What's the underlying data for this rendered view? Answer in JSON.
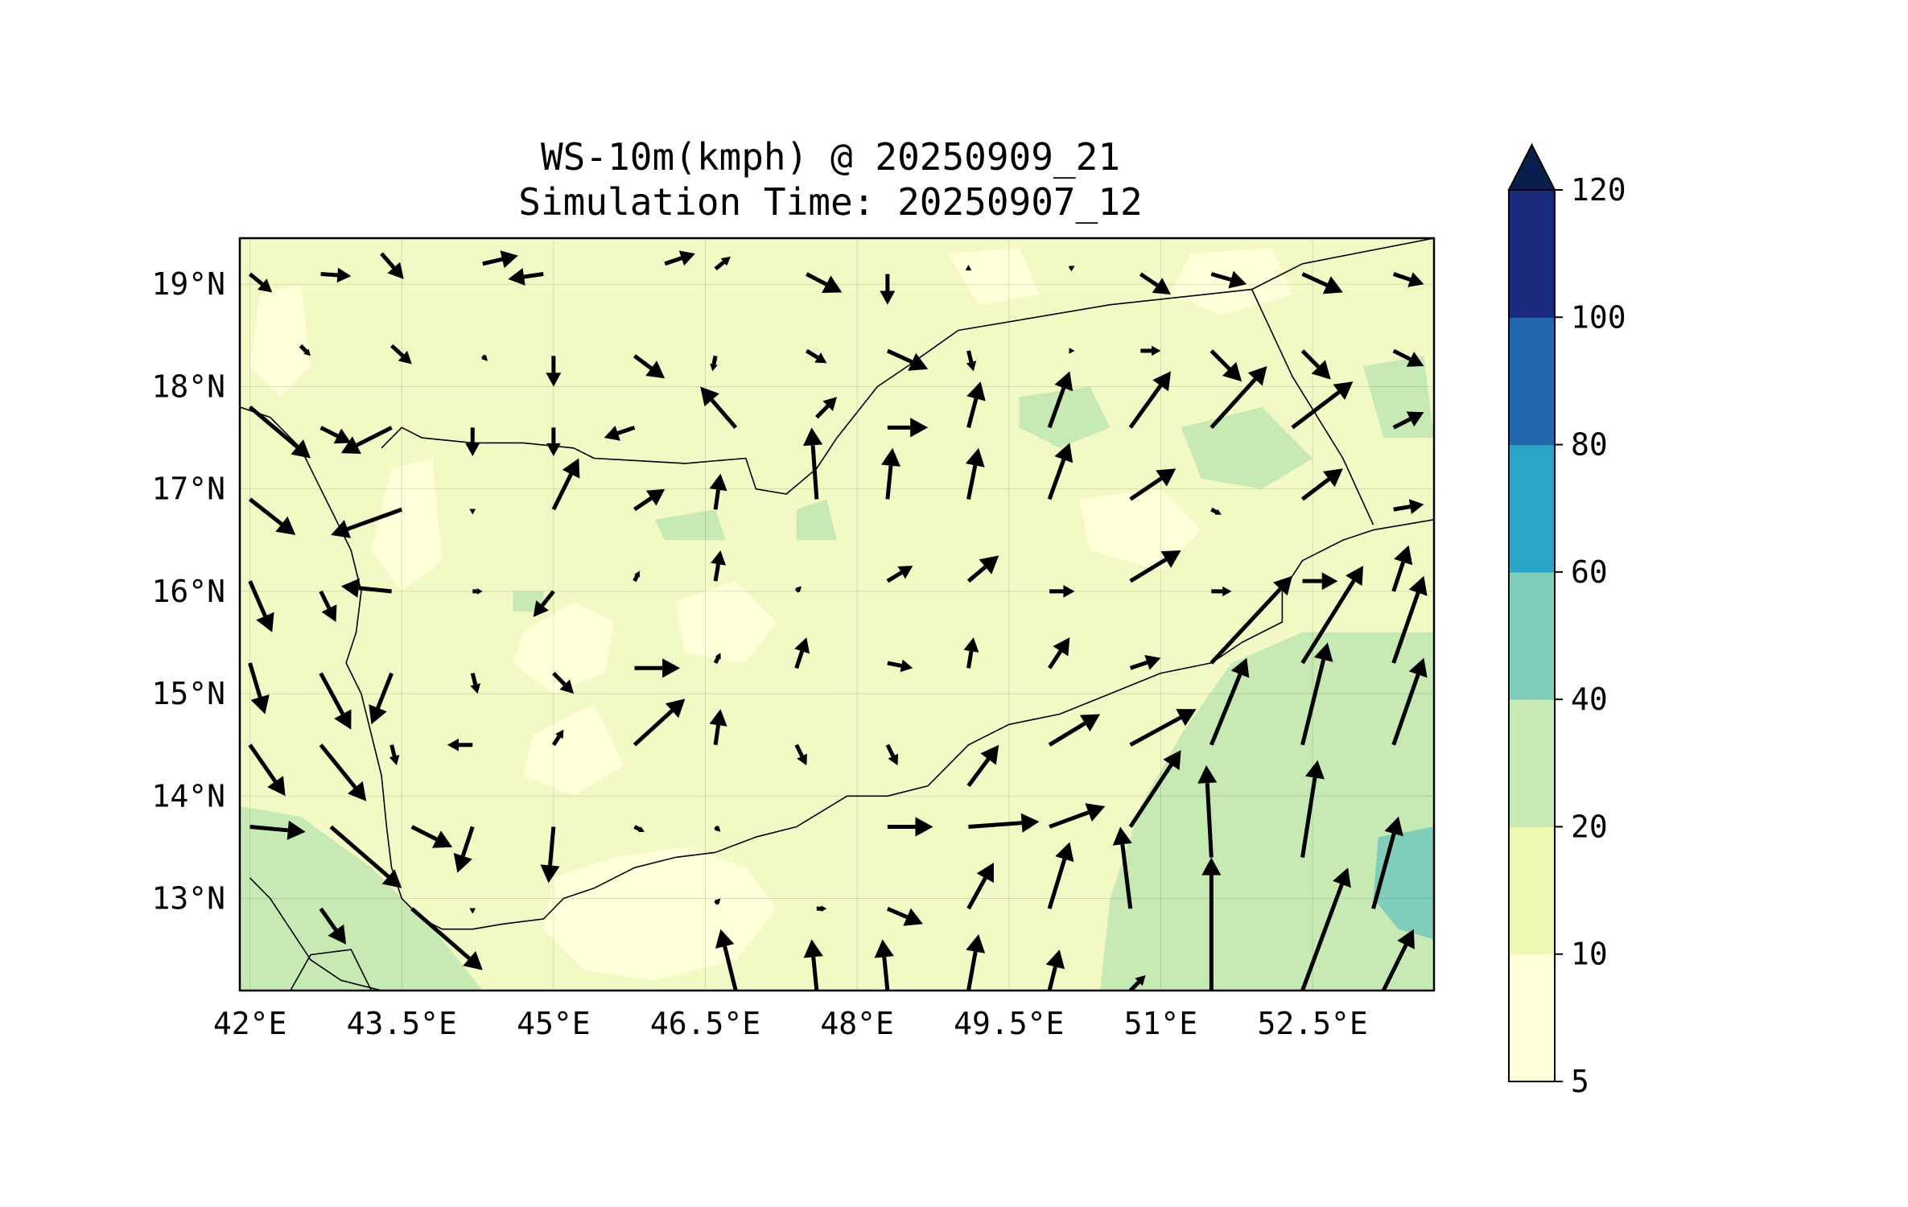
{
  "title_line1": "WS-10m(kmph) @ 20250909_21",
  "title_line2": "Simulation Time: 20250907_12",
  "lon_ticks": [
    {
      "lon": 42.0,
      "label": "42°E"
    },
    {
      "lon": 43.5,
      "label": "43.5°E"
    },
    {
      "lon": 45.0,
      "label": "45°E"
    },
    {
      "lon": 46.5,
      "label": "46.5°E"
    },
    {
      "lon": 48.0,
      "label": "48°E"
    },
    {
      "lon": 49.5,
      "label": "49.5°E"
    },
    {
      "lon": 51.0,
      "label": "51°E"
    },
    {
      "lon": 52.5,
      "label": "52.5°E"
    }
  ],
  "lat_ticks": [
    {
      "lat": 19,
      "label": "19°N"
    },
    {
      "lat": 18,
      "label": "18°N"
    },
    {
      "lat": 17,
      "label": "17°N"
    },
    {
      "lat": 16,
      "label": "16°N"
    },
    {
      "lat": 15,
      "label": "15°N"
    },
    {
      "lat": 14,
      "label": "14°N"
    },
    {
      "lat": 13,
      "label": "13°N"
    }
  ],
  "extent": {
    "lon_min": 41.9,
    "lon_max": 53.7,
    "lat_min": 12.1,
    "lat_max": 19.45
  },
  "colorbar": {
    "levels": [
      5,
      10,
      20,
      40,
      60,
      80,
      100,
      120
    ],
    "labels": [
      "5",
      "10",
      "20",
      "40",
      "60",
      "80",
      "100",
      "120"
    ],
    "colors": [
      "#ffffd9",
      "#edf8b1",
      "#c7e9b4",
      "#7fcdbb",
      "#2aa5c6",
      "#2167ac",
      "#1a2b7c"
    ],
    "extend_color": "#0a1f4d",
    "extend": "max"
  },
  "wind_vectors": [
    {
      "lon": 42.0,
      "lat": 19.1,
      "dlon": 0.22,
      "dlat": -0.18
    },
    {
      "lon": 42.7,
      "lat": 19.1,
      "dlon": 0.3,
      "dlat": -0.02
    },
    {
      "lon": 43.3,
      "lat": 19.3,
      "dlon": 0.22,
      "dlat": -0.25
    },
    {
      "lon": 44.3,
      "lat": 19.2,
      "dlon": 0.35,
      "dlat": 0.08
    },
    {
      "lon": 44.9,
      "lat": 19.1,
      "dlon": -0.35,
      "dlat": -0.05
    },
    {
      "lon": 46.1,
      "lat": 19.2,
      "dlon": 0.3,
      "dlat": 0.1
    },
    {
      "lon": 46.6,
      "lat": 19.15,
      "dlon": 0.15,
      "dlat": 0.12
    },
    {
      "lon": 47.5,
      "lat": 19.1,
      "dlon": 0.35,
      "dlat": -0.18
    },
    {
      "lon": 48.3,
      "lat": 19.1,
      "dlon": 0.0,
      "dlat": -0.3
    },
    {
      "lon": 49.1,
      "lat": 19.15,
      "dlon": 0.0,
      "dlat": 0.04
    },
    {
      "lon": 50.1,
      "lat": 19.15,
      "dlon": 0.05,
      "dlat": 0.03
    },
    {
      "lon": 50.8,
      "lat": 19.1,
      "dlon": 0.3,
      "dlat": -0.2
    },
    {
      "lon": 51.5,
      "lat": 19.1,
      "dlon": 0.35,
      "dlat": -0.1
    },
    {
      "lon": 52.4,
      "lat": 19.1,
      "dlon": 0.4,
      "dlat": -0.18
    },
    {
      "lon": 53.3,
      "lat": 19.1,
      "dlon": 0.3,
      "dlat": -0.1
    },
    {
      "lon": 42.5,
      "lat": 18.4,
      "dlon": 0.1,
      "dlat": -0.1
    },
    {
      "lon": 43.4,
      "lat": 18.4,
      "dlon": 0.2,
      "dlat": -0.18
    },
    {
      "lon": 44.3,
      "lat": 18.3,
      "dlon": 0.05,
      "dlat": -0.05
    },
    {
      "lon": 45.0,
      "lat": 18.3,
      "dlon": 0.0,
      "dlat": -0.3
    },
    {
      "lon": 45.8,
      "lat": 18.3,
      "dlon": 0.3,
      "dlat": -0.22
    },
    {
      "lon": 46.6,
      "lat": 18.3,
      "dlon": -0.03,
      "dlat": -0.15
    },
    {
      "lon": 47.5,
      "lat": 18.35,
      "dlon": 0.2,
      "dlat": -0.12
    },
    {
      "lon": 48.3,
      "lat": 18.35,
      "dlon": 0.4,
      "dlat": -0.18
    },
    {
      "lon": 49.1,
      "lat": 18.35,
      "dlon": 0.05,
      "dlat": -0.2
    },
    {
      "lon": 50.1,
      "lat": 18.35,
      "dlon": 0.05,
      "dlat": 0.0
    },
    {
      "lon": 50.8,
      "lat": 18.35,
      "dlon": 0.2,
      "dlat": 0.0
    },
    {
      "lon": 51.5,
      "lat": 18.35,
      "dlon": 0.3,
      "dlat": -0.3
    },
    {
      "lon": 52.4,
      "lat": 18.35,
      "dlon": 0.28,
      "dlat": -0.28
    },
    {
      "lon": 53.3,
      "lat": 18.35,
      "dlon": 0.3,
      "dlat": -0.15
    },
    {
      "lon": 42.0,
      "lat": 17.8,
      "dlon": 0.6,
      "dlat": -0.5
    },
    {
      "lon": 42.7,
      "lat": 17.6,
      "dlon": 0.3,
      "dlat": -0.15
    },
    {
      "lon": 43.4,
      "lat": 17.6,
      "dlon": -0.5,
      "dlat": -0.25
    },
    {
      "lon": 44.2,
      "lat": 17.6,
      "dlon": 0.0,
      "dlat": -0.28
    },
    {
      "lon": 45.0,
      "lat": 17.6,
      "dlon": 0.0,
      "dlat": -0.28
    },
    {
      "lon": 45.8,
      "lat": 17.6,
      "dlon": -0.3,
      "dlat": -0.1
    },
    {
      "lon": 46.8,
      "lat": 17.6,
      "dlon": -0.35,
      "dlat": 0.4
    },
    {
      "lon": 47.6,
      "lat": 17.7,
      "dlon": 0.2,
      "dlat": 0.2
    },
    {
      "lon": 48.3,
      "lat": 17.6,
      "dlon": 0.4,
      "dlat": 0.0
    },
    {
      "lon": 49.1,
      "lat": 17.6,
      "dlon": 0.12,
      "dlat": 0.45
    },
    {
      "lon": 49.9,
      "lat": 17.6,
      "dlon": 0.2,
      "dlat": 0.55
    },
    {
      "lon": 50.7,
      "lat": 17.6,
      "dlon": 0.4,
      "dlat": 0.55
    },
    {
      "lon": 51.5,
      "lat": 17.6,
      "dlon": 0.55,
      "dlat": 0.6
    },
    {
      "lon": 52.3,
      "lat": 17.6,
      "dlon": 0.6,
      "dlat": 0.45
    },
    {
      "lon": 53.3,
      "lat": 17.6,
      "dlon": 0.3,
      "dlat": 0.15
    },
    {
      "lon": 42.0,
      "lat": 16.9,
      "dlon": 0.45,
      "dlat": -0.35
    },
    {
      "lon": 43.5,
      "lat": 16.8,
      "dlon": -0.7,
      "dlat": -0.25
    },
    {
      "lon": 44.2,
      "lat": 16.8,
      "dlon": 0.0,
      "dlat": -0.05
    },
    {
      "lon": 45.0,
      "lat": 16.8,
      "dlon": 0.25,
      "dlat": 0.5
    },
    {
      "lon": 45.8,
      "lat": 16.8,
      "dlon": 0.3,
      "dlat": 0.2
    },
    {
      "lon": 46.6,
      "lat": 16.8,
      "dlon": 0.05,
      "dlat": 0.35
    },
    {
      "lon": 47.6,
      "lat": 16.9,
      "dlon": -0.05,
      "dlat": 0.7
    },
    {
      "lon": 48.3,
      "lat": 16.9,
      "dlon": 0.05,
      "dlat": 0.5
    },
    {
      "lon": 49.1,
      "lat": 16.9,
      "dlon": 0.1,
      "dlat": 0.5
    },
    {
      "lon": 49.9,
      "lat": 16.9,
      "dlon": 0.2,
      "dlat": 0.55
    },
    {
      "lon": 50.7,
      "lat": 16.9,
      "dlon": 0.45,
      "dlat": 0.3
    },
    {
      "lon": 51.5,
      "lat": 16.8,
      "dlon": 0.1,
      "dlat": -0.05
    },
    {
      "lon": 52.4,
      "lat": 16.9,
      "dlon": 0.4,
      "dlat": 0.3
    },
    {
      "lon": 53.3,
      "lat": 16.8,
      "dlon": 0.3,
      "dlat": 0.05
    },
    {
      "lon": 42.0,
      "lat": 16.1,
      "dlon": 0.22,
      "dlat": -0.5
    },
    {
      "lon": 42.7,
      "lat": 16.0,
      "dlon": 0.15,
      "dlat": -0.3
    },
    {
      "lon": 43.4,
      "lat": 16.0,
      "dlon": -0.5,
      "dlat": 0.05
    },
    {
      "lon": 44.2,
      "lat": 16.0,
      "dlon": 0.1,
      "dlat": 0.0
    },
    {
      "lon": 45.0,
      "lat": 16.0,
      "dlon": -0.2,
      "dlat": -0.25
    },
    {
      "lon": 45.8,
      "lat": 16.1,
      "dlon": 0.05,
      "dlat": 0.1
    },
    {
      "lon": 46.6,
      "lat": 16.1,
      "dlon": 0.05,
      "dlat": 0.3
    },
    {
      "lon": 47.4,
      "lat": 16.0,
      "dlon": 0.05,
      "dlat": 0.05
    },
    {
      "lon": 48.3,
      "lat": 16.1,
      "dlon": 0.25,
      "dlat": 0.15
    },
    {
      "lon": 49.1,
      "lat": 16.1,
      "dlon": 0.3,
      "dlat": 0.25
    },
    {
      "lon": 49.9,
      "lat": 16.0,
      "dlon": 0.25,
      "dlat": 0.0
    },
    {
      "lon": 50.7,
      "lat": 16.1,
      "dlon": 0.5,
      "dlat": 0.3
    },
    {
      "lon": 51.5,
      "lat": 16.0,
      "dlon": 0.2,
      "dlat": 0.0
    },
    {
      "lon": 52.4,
      "lat": 16.1,
      "dlon": 0.35,
      "dlat": 0.0
    },
    {
      "lon": 53.3,
      "lat": 16.0,
      "dlon": 0.15,
      "dlat": 0.45
    },
    {
      "lon": 42.0,
      "lat": 15.3,
      "dlon": 0.15,
      "dlat": -0.5
    },
    {
      "lon": 42.7,
      "lat": 15.2,
      "dlon": 0.3,
      "dlat": -0.55
    },
    {
      "lon": 43.4,
      "lat": 15.2,
      "dlon": -0.2,
      "dlat": -0.5
    },
    {
      "lon": 44.2,
      "lat": 15.2,
      "dlon": 0.05,
      "dlat": -0.2
    },
    {
      "lon": 45.0,
      "lat": 15.2,
      "dlon": 0.2,
      "dlat": -0.2
    },
    {
      "lon": 45.8,
      "lat": 15.25,
      "dlon": 0.45,
      "dlat": 0.0
    },
    {
      "lon": 46.6,
      "lat": 15.3,
      "dlon": 0.05,
      "dlat": 0.1
    },
    {
      "lon": 47.4,
      "lat": 15.25,
      "dlon": 0.1,
      "dlat": 0.3
    },
    {
      "lon": 48.3,
      "lat": 15.3,
      "dlon": 0.25,
      "dlat": -0.05
    },
    {
      "lon": 49.1,
      "lat": 15.25,
      "dlon": 0.05,
      "dlat": 0.3
    },
    {
      "lon": 49.9,
      "lat": 15.25,
      "dlon": 0.2,
      "dlat": 0.3
    },
    {
      "lon": 50.7,
      "lat": 15.25,
      "dlon": 0.3,
      "dlat": 0.1
    },
    {
      "lon": 51.5,
      "lat": 15.3,
      "dlon": 0.8,
      "dlat": 0.85
    },
    {
      "lon": 52.4,
      "lat": 15.3,
      "dlon": 0.6,
      "dlat": 0.95
    },
    {
      "lon": 53.3,
      "lat": 15.3,
      "dlon": 0.3,
      "dlat": 0.85
    },
    {
      "lon": 42.0,
      "lat": 14.5,
      "dlon": 0.35,
      "dlat": -0.5
    },
    {
      "lon": 42.7,
      "lat": 14.5,
      "dlon": 0.45,
      "dlat": -0.55
    },
    {
      "lon": 43.4,
      "lat": 14.5,
      "dlon": 0.05,
      "dlat": -0.2
    },
    {
      "lon": 44.2,
      "lat": 14.5,
      "dlon": -0.25,
      "dlat": 0.0
    },
    {
      "lon": 45.0,
      "lat": 14.5,
      "dlon": 0.1,
      "dlat": 0.15
    },
    {
      "lon": 45.8,
      "lat": 14.5,
      "dlon": 0.5,
      "dlat": 0.45
    },
    {
      "lon": 46.6,
      "lat": 14.5,
      "dlon": 0.05,
      "dlat": 0.35
    },
    {
      "lon": 47.4,
      "lat": 14.5,
      "dlon": 0.1,
      "dlat": -0.2
    },
    {
      "lon": 48.3,
      "lat": 14.5,
      "dlon": 0.1,
      "dlat": -0.2
    },
    {
      "lon": 49.1,
      "lat": 14.1,
      "dlon": 0.3,
      "dlat": 0.4
    },
    {
      "lon": 49.9,
      "lat": 14.5,
      "dlon": 0.5,
      "dlat": 0.3
    },
    {
      "lon": 50.7,
      "lat": 14.5,
      "dlon": 0.65,
      "dlat": 0.35
    },
    {
      "lon": 51.5,
      "lat": 14.5,
      "dlon": 0.35,
      "dlat": 0.85
    },
    {
      "lon": 52.4,
      "lat": 14.5,
      "dlon": 0.25,
      "dlat": 1.0
    },
    {
      "lon": 53.3,
      "lat": 14.5,
      "dlon": 0.3,
      "dlat": 0.85
    },
    {
      "lon": 42.0,
      "lat": 13.7,
      "dlon": 0.55,
      "dlat": -0.05
    },
    {
      "lon": 42.8,
      "lat": 13.7,
      "dlon": 0.7,
      "dlat": -0.6
    },
    {
      "lon": 43.6,
      "lat": 13.7,
      "dlon": 0.4,
      "dlat": -0.2
    },
    {
      "lon": 44.2,
      "lat": 13.7,
      "dlon": -0.15,
      "dlat": -0.45
    },
    {
      "lon": 45.0,
      "lat": 13.7,
      "dlon": -0.05,
      "dlat": -0.55
    },
    {
      "lon": 45.8,
      "lat": 13.7,
      "dlon": 0.1,
      "dlat": -0.05
    },
    {
      "lon": 46.6,
      "lat": 13.7,
      "dlon": 0.05,
      "dlat": -0.05
    },
    {
      "lon": 48.3,
      "lat": 13.7,
      "dlon": 0.45,
      "dlat": 0.0
    },
    {
      "lon": 49.1,
      "lat": 13.7,
      "dlon": 0.7,
      "dlat": 0.05
    },
    {
      "lon": 49.9,
      "lat": 13.7,
      "dlon": 0.55,
      "dlat": 0.2
    },
    {
      "lon": 50.7,
      "lat": 13.7,
      "dlon": 0.5,
      "dlat": 0.75
    },
    {
      "lon": 51.5,
      "lat": 13.4,
      "dlon": -0.05,
      "dlat": 0.9
    },
    {
      "lon": 52.4,
      "lat": 13.4,
      "dlon": 0.15,
      "dlat": 0.95
    },
    {
      "lon": 53.1,
      "lat": 12.9,
      "dlon": 0.25,
      "dlat": 0.9
    },
    {
      "lon": 42.7,
      "lat": 12.9,
      "dlon": 0.25,
      "dlat": -0.35
    },
    {
      "lon": 43.6,
      "lat": 12.9,
      "dlon": 0.7,
      "dlat": -0.6
    },
    {
      "lon": 44.2,
      "lat": 12.9,
      "dlon": 0.0,
      "dlat": -0.05
    },
    {
      "lon": 45.8,
      "lat": 12.95,
      "dlon": 0.0,
      "dlat": 0.0
    },
    {
      "lon": 46.6,
      "lat": 12.95,
      "dlon": 0.05,
      "dlat": 0.05
    },
    {
      "lon": 47.6,
      "lat": 12.9,
      "dlon": 0.1,
      "dlat": 0.0
    },
    {
      "lon": 48.3,
      "lat": 12.9,
      "dlon": 0.35,
      "dlat": -0.15
    },
    {
      "lon": 49.1,
      "lat": 12.9,
      "dlon": 0.25,
      "dlat": 0.45
    },
    {
      "lon": 49.9,
      "lat": 12.9,
      "dlon": 0.2,
      "dlat": 0.65
    },
    {
      "lon": 50.7,
      "lat": 12.9,
      "dlon": -0.1,
      "dlat": 0.8
    },
    {
      "lon": 51.5,
      "lat": 12.1,
      "dlon": 0.0,
      "dlat": 1.3
    },
    {
      "lon": 52.4,
      "lat": 12.1,
      "dlon": 0.45,
      "dlat": 1.2
    },
    {
      "lon": 53.2,
      "lat": 12.1,
      "dlon": 0.3,
      "dlat": 0.6
    },
    {
      "lon": 46.8,
      "lat": 12.1,
      "dlon": -0.15,
      "dlat": 0.6
    },
    {
      "lon": 47.6,
      "lat": 12.1,
      "dlon": -0.05,
      "dlat": 0.5
    },
    {
      "lon": 48.3,
      "lat": 12.1,
      "dlon": -0.05,
      "dlat": 0.5
    },
    {
      "lon": 49.1,
      "lat": 12.1,
      "dlon": 0.1,
      "dlat": 0.55
    },
    {
      "lon": 49.9,
      "lat": 12.1,
      "dlon": 0.1,
      "dlat": 0.4
    },
    {
      "lon": 50.7,
      "lat": 12.1,
      "dlon": 0.15,
      "dlat": 0.15
    }
  ],
  "boundaries": {
    "coast_red_sea": [
      [
        41.9,
        17.8
      ],
      [
        42.2,
        17.7
      ],
      [
        42.5,
        17.4
      ],
      [
        42.7,
        17.0
      ],
      [
        42.85,
        16.7
      ],
      [
        43.0,
        16.4
      ],
      [
        43.1,
        16.0
      ],
      [
        43.05,
        15.6
      ],
      [
        42.95,
        15.3
      ],
      [
        43.1,
        15.0
      ],
      [
        43.2,
        14.6
      ],
      [
        43.3,
        14.2
      ],
      [
        43.35,
        13.7
      ],
      [
        43.4,
        13.3
      ],
      [
        43.5,
        13.0
      ],
      [
        43.7,
        12.8
      ],
      [
        43.9,
        12.7
      ]
    ],
    "coast_gulf_aden": [
      [
        43.9,
        12.7
      ],
      [
        44.2,
        12.7
      ],
      [
        44.5,
        12.75
      ],
      [
        44.9,
        12.8
      ],
      [
        45.1,
        13.0
      ],
      [
        45.4,
        13.1
      ],
      [
        45.8,
        13.3
      ],
      [
        46.2,
        13.4
      ],
      [
        46.6,
        13.45
      ],
      [
        47.0,
        13.6
      ],
      [
        47.4,
        13.7
      ],
      [
        47.9,
        14.0
      ],
      [
        48.3,
        14.0
      ],
      [
        48.7,
        14.1
      ],
      [
        49.1,
        14.5
      ],
      [
        49.5,
        14.7
      ],
      [
        50.0,
        14.8
      ],
      [
        50.5,
        15.0
      ],
      [
        51.0,
        15.2
      ],
      [
        51.5,
        15.3
      ],
      [
        51.8,
        15.5
      ],
      [
        52.2,
        15.7
      ],
      [
        52.2,
        16.0
      ],
      [
        52.4,
        16.3
      ],
      [
        52.8,
        16.5
      ],
      [
        53.1,
        16.6
      ],
      [
        53.7,
        16.7
      ]
    ],
    "border_saudi": [
      [
        43.3,
        17.4
      ],
      [
        43.5,
        17.6
      ],
      [
        43.7,
        17.5
      ],
      [
        44.2,
        17.45
      ],
      [
        44.7,
        17.45
      ],
      [
        45.2,
        17.4
      ],
      [
        45.4,
        17.3
      ],
      [
        46.3,
        17.25
      ],
      [
        46.9,
        17.3
      ],
      [
        47.0,
        17.0
      ],
      [
        47.3,
        16.95
      ],
      [
        47.6,
        17.2
      ],
      [
        47.8,
        17.5
      ],
      [
        48.2,
        18.0
      ],
      [
        48.5,
        18.2
      ],
      [
        49.0,
        18.55
      ],
      [
        50.5,
        18.8
      ],
      [
        51.9,
        18.95
      ],
      [
        52.4,
        19.2
      ],
      [
        53.7,
        19.45
      ]
    ],
    "border_oman": [
      [
        51.9,
        18.95
      ],
      [
        52.3,
        18.1
      ],
      [
        52.8,
        17.3
      ],
      [
        53.1,
        16.65
      ]
    ],
    "coast_africa": [
      [
        42.0,
        13.2
      ],
      [
        42.2,
        13.0
      ],
      [
        42.4,
        12.7
      ],
      [
        42.6,
        12.4
      ],
      [
        42.9,
        12.2
      ],
      [
        43.3,
        12.1
      ]
    ],
    "border_africa": [
      [
        42.4,
        12.1
      ],
      [
        42.6,
        12.45
      ],
      [
        43.0,
        12.5
      ],
      [
        43.2,
        12.1
      ]
    ]
  }
}
